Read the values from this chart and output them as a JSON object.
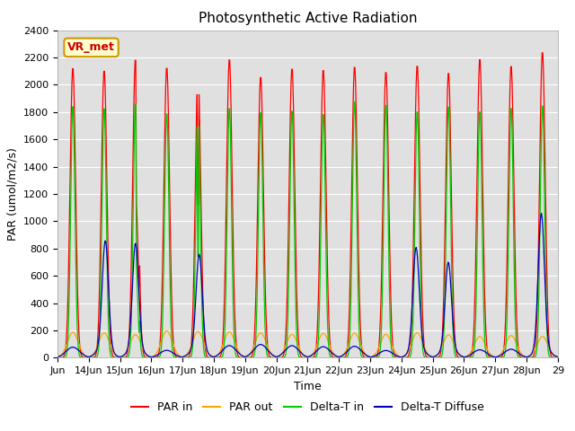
{
  "title": "Photosynthetic Active Radiation",
  "ylabel": "PAR (umol/m2/s)",
  "xlabel": "Time",
  "ylim": [
    0,
    2400
  ],
  "legend_labels": [
    "PAR in",
    "PAR out",
    "Delta-T in",
    "Delta-T Diffuse"
  ],
  "line_colors": [
    "#ff0000",
    "#ffa500",
    "#00cc00",
    "#0000bb"
  ],
  "annotation_text": "VR_met",
  "annotation_color": "#cc0000",
  "annotation_bg": "#ffffcc",
  "annotation_border": "#cc9900",
  "bg_color": "#e0e0e0",
  "grid_color": "#ffffff",
  "tick_fontsize": 8,
  "title_fontsize": 11,
  "xlabel_fontsize": 9,
  "ylabel_fontsize": 9,
  "xlim_start": 13,
  "xlim_end": 29,
  "yticks": [
    0,
    200,
    400,
    600,
    800,
    1000,
    1200,
    1400,
    1600,
    1800,
    2000,
    2200,
    2400
  ]
}
